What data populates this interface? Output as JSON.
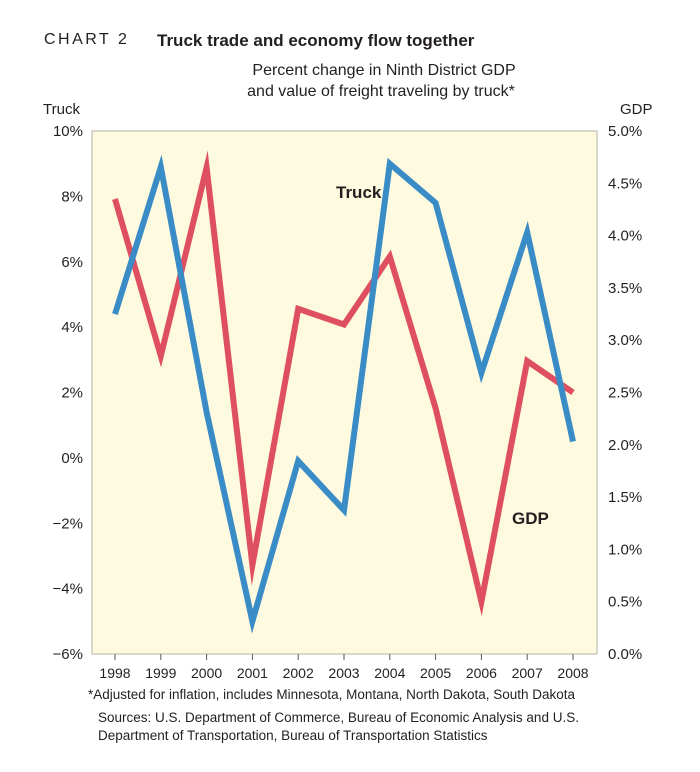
{
  "header": {
    "chart_label": "CHART 2",
    "title": "Truck trade and economy flow together",
    "subtitle_line1": "Percent change in Ninth District GDP",
    "subtitle_line2": "and value of freight traveling by truck*"
  },
  "chart_data": {
    "type": "line",
    "x": [
      "1998",
      "1999",
      "2000",
      "2001",
      "2002",
      "2003",
      "2004",
      "2005",
      "2006",
      "2007",
      "2008"
    ],
    "y_left_label": "Truck",
    "y_right_label": "GDP",
    "y_left_lim": [
      -6,
      10
    ],
    "y_right_lim": [
      0,
      5
    ],
    "y_left_ticks": [
      "10%",
      "8%",
      "6%",
      "4%",
      "2%",
      "0%",
      "−2%",
      "−4%",
      "−6%"
    ],
    "y_right_ticks": [
      "5.0%",
      "4.5%",
      "4.0%",
      "3.5%",
      "3.0%",
      "2.5%",
      "2.0%",
      "1.5%",
      "1.0%",
      "0.5%",
      "0.0%"
    ],
    "grid": false,
    "series": [
      {
        "name": "Truck",
        "axis": "left",
        "color": "#3a8cc6",
        "values": [
          4.4,
          8.9,
          1.4,
          -5.0,
          -0.1,
          -1.6,
          9.0,
          7.8,
          2.6,
          6.9,
          0.5
        ]
      },
      {
        "name": "GDP",
        "axis": "right",
        "color": "#de4f61",
        "values": [
          4.35,
          2.85,
          4.65,
          0.85,
          3.3,
          3.15,
          3.8,
          2.35,
          0.5,
          2.8,
          2.5
        ]
      }
    ]
  },
  "footnote": "*Adjusted for inflation, includes Minnesota, Montana, North Dakota, South Dakota",
  "source_line1": "Sources: U.S. Department of Commerce, Bureau of Economic Analysis and U.S.",
  "source_line2": "Department of Transportation, Bureau of Transportation Statistics",
  "colors": {
    "plot_background": "#fdfae0",
    "truck": "#3a8cc6",
    "gdp": "#de4f61"
  }
}
